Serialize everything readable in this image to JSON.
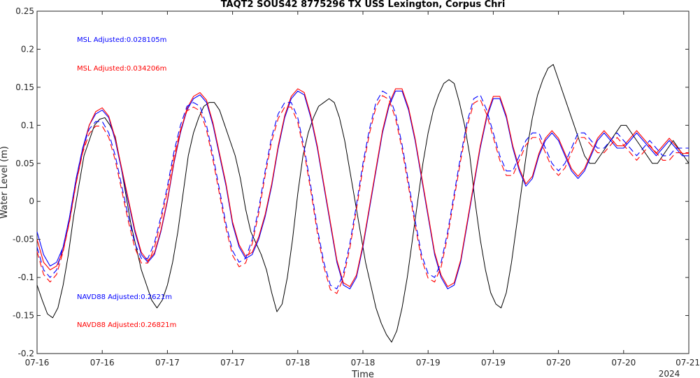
{
  "chart_data": {
    "type": "line",
    "title": "TAQT2 SOUS42 8775296 TX USS Lexington, Corpus Chri",
    "xlabel": "Time",
    "ylabel": "Water Level (m)",
    "xlim": [
      0,
      5
    ],
    "ylim": [
      -0.2,
      0.25
    ],
    "x_unit": "days from 2024-07-16 00:00",
    "x_tick_labels": [
      "07-16",
      "07-16",
      "07-17",
      "07-17",
      "07-18",
      "07-18",
      "07-19",
      "07-19",
      "07-20",
      "07-20",
      "07-21"
    ],
    "x_year_label": "2024",
    "y_ticks": [
      -0.2,
      -0.15,
      -0.1,
      -0.05,
      0,
      0.05,
      0.1,
      0.15,
      0.2,
      0.25
    ],
    "y_tick_labels": [
      "-0.2",
      "-0.15",
      "-0.1",
      "-0.05",
      "0",
      "0.05",
      "0.1",
      "0.15",
      "0.2",
      "0.25"
    ],
    "grid": false,
    "annotations": [
      {
        "text": "MSL Adjusted:0.028105m",
        "color": "#0000ff"
      },
      {
        "text": "MSL Adjusted:0.034206m",
        "color": "#ff0000"
      },
      {
        "text": "NAVD88 Adjusted:0.2621m",
        "color": "#0000ff"
      },
      {
        "text": "NAVD88 Adjusted:0.26821m",
        "color": "#ff0000"
      }
    ],
    "series": [
      {
        "color": "#000000",
        "style": "solid",
        "x": [
          0,
          0.04,
          0.08,
          0.12,
          0.16,
          0.2,
          0.24,
          0.28,
          0.32,
          0.36,
          0.4,
          0.44,
          0.48,
          0.52,
          0.56,
          0.6,
          0.64,
          0.68,
          0.72,
          0.76,
          0.8,
          0.84,
          0.88,
          0.92,
          0.96,
          1,
          1.04,
          1.08,
          1.12,
          1.16,
          1.2,
          1.24,
          1.28,
          1.32,
          1.36,
          1.4,
          1.44,
          1.48,
          1.52,
          1.56,
          1.6,
          1.64,
          1.68,
          1.72,
          1.76,
          1.8,
          1.84,
          1.88,
          1.92,
          1.96,
          2,
          2.04,
          2.08,
          2.12,
          2.16,
          2.2,
          2.24,
          2.28,
          2.32,
          2.36,
          2.4,
          2.44,
          2.48,
          2.52,
          2.56,
          2.6,
          2.64,
          2.68,
          2.72,
          2.76,
          2.8,
          2.84,
          2.88,
          2.92,
          2.96,
          3,
          3.04,
          3.08,
          3.12,
          3.16,
          3.2,
          3.24,
          3.28,
          3.32,
          3.36,
          3.4,
          3.44,
          3.48,
          3.52,
          3.56,
          3.6,
          3.64,
          3.68,
          3.72,
          3.76,
          3.8,
          3.84,
          3.88,
          3.92,
          3.96,
          4,
          4.04,
          4.08,
          4.12,
          4.16,
          4.2,
          4.24,
          4.28,
          4.32,
          4.36,
          4.4,
          4.44,
          4.48,
          4.52,
          4.56,
          4.6,
          4.64,
          4.68,
          4.72,
          4.76,
          4.8,
          4.84,
          4.88,
          4.92,
          4.96,
          5
        ],
        "y": [
          -0.11,
          -0.13,
          -0.148,
          -0.153,
          -0.14,
          -0.11,
          -0.07,
          -0.02,
          0.02,
          0.06,
          0.08,
          0.1,
          0.108,
          0.11,
          0.1,
          0.085,
          0.05,
          0.01,
          -0.03,
          -0.06,
          -0.09,
          -0.11,
          -0.13,
          -0.14,
          -0.13,
          -0.11,
          -0.08,
          -0.04,
          0.01,
          0.06,
          0.09,
          0.11,
          0.125,
          0.13,
          0.13,
          0.12,
          0.1,
          0.08,
          0.06,
          0.03,
          -0.01,
          -0.04,
          -0.055,
          -0.07,
          -0.09,
          -0.12,
          -0.145,
          -0.135,
          -0.1,
          -0.05,
          0.01,
          0.06,
          0.09,
          0.11,
          0.125,
          0.13,
          0.135,
          0.13,
          0.11,
          0.08,
          0.04,
          0.0,
          -0.04,
          -0.08,
          -0.11,
          -0.14,
          -0.16,
          -0.175,
          -0.185,
          -0.17,
          -0.14,
          -0.1,
          -0.05,
          0.0,
          0.05,
          0.09,
          0.12,
          0.14,
          0.155,
          0.16,
          0.155,
          0.13,
          0.1,
          0.06,
          0.0,
          -0.05,
          -0.09,
          -0.12,
          -0.135,
          -0.14,
          -0.12,
          -0.08,
          -0.03,
          0.02,
          0.07,
          0.11,
          0.14,
          0.16,
          0.175,
          0.18,
          0.16,
          0.14,
          0.12,
          0.1,
          0.08,
          0.06,
          0.05,
          0.05,
          0.06,
          0.07,
          0.08,
          0.09,
          0.1,
          0.1,
          0.09,
          0.08,
          0.07,
          0.06,
          0.05,
          0.05,
          0.06,
          0.07,
          0.08,
          0.07,
          0.06,
          0.05
        ]
      },
      {
        "color": "#0000ff",
        "style": "solid",
        "x": [
          0,
          0.05,
          0.1,
          0.15,
          0.2,
          0.25,
          0.3,
          0.35,
          0.4,
          0.45,
          0.5,
          0.55,
          0.6,
          0.65,
          0.7,
          0.75,
          0.8,
          0.85,
          0.9,
          0.95,
          1,
          1.05,
          1.1,
          1.15,
          1.2,
          1.25,
          1.3,
          1.35,
          1.4,
          1.45,
          1.5,
          1.55,
          1.6,
          1.65,
          1.7,
          1.75,
          1.8,
          1.85,
          1.9,
          1.95,
          2,
          2.05,
          2.1,
          2.15,
          2.2,
          2.25,
          2.3,
          2.35,
          2.4,
          2.45,
          2.5,
          2.55,
          2.6,
          2.65,
          2.7,
          2.75,
          2.8,
          2.85,
          2.9,
          2.95,
          3,
          3.05,
          3.1,
          3.15,
          3.2,
          3.25,
          3.3,
          3.35,
          3.4,
          3.45,
          3.5,
          3.55,
          3.6,
          3.65,
          3.7,
          3.75,
          3.8,
          3.85,
          3.9,
          3.95,
          4,
          4.05,
          4.1,
          4.15,
          4.2,
          4.25,
          4.3,
          4.35,
          4.4,
          4.45,
          4.5,
          4.55,
          4.6,
          4.65,
          4.7,
          4.75,
          4.8,
          4.85,
          4.9,
          4.95,
          5
        ],
        "y": [
          -0.04,
          -0.07,
          -0.085,
          -0.08,
          -0.06,
          -0.02,
          0.03,
          0.07,
          0.1,
          0.115,
          0.12,
          0.11,
          0.08,
          0.04,
          0.0,
          -0.04,
          -0.07,
          -0.08,
          -0.07,
          -0.04,
          0.0,
          0.05,
          0.09,
          0.12,
          0.135,
          0.14,
          0.13,
          0.1,
          0.06,
          0.02,
          -0.03,
          -0.06,
          -0.075,
          -0.07,
          -0.05,
          -0.02,
          0.02,
          0.07,
          0.11,
          0.135,
          0.145,
          0.14,
          0.11,
          0.07,
          0.02,
          -0.03,
          -0.08,
          -0.11,
          -0.115,
          -0.1,
          -0.06,
          -0.01,
          0.04,
          0.09,
          0.125,
          0.145,
          0.145,
          0.12,
          0.08,
          0.03,
          -0.02,
          -0.07,
          -0.1,
          -0.115,
          -0.11,
          -0.08,
          -0.03,
          0.02,
          0.07,
          0.11,
          0.135,
          0.135,
          0.11,
          0.07,
          0.04,
          0.02,
          0.03,
          0.06,
          0.08,
          0.09,
          0.08,
          0.06,
          0.04,
          0.03,
          0.04,
          0.06,
          0.08,
          0.09,
          0.08,
          0.07,
          0.07,
          0.08,
          0.09,
          0.08,
          0.07,
          0.06,
          0.07,
          0.08,
          0.07,
          0.06,
          0.06
        ]
      },
      {
        "color": "#ff0000",
        "style": "solid",
        "x": [
          0,
          0.05,
          0.1,
          0.15,
          0.2,
          0.25,
          0.3,
          0.35,
          0.4,
          0.45,
          0.5,
          0.55,
          0.6,
          0.65,
          0.7,
          0.75,
          0.8,
          0.85,
          0.9,
          0.95,
          1,
          1.05,
          1.1,
          1.15,
          1.2,
          1.25,
          1.3,
          1.35,
          1.4,
          1.45,
          1.5,
          1.55,
          1.6,
          1.65,
          1.7,
          1.75,
          1.8,
          1.85,
          1.9,
          1.95,
          2,
          2.05,
          2.1,
          2.15,
          2.2,
          2.25,
          2.3,
          2.35,
          2.4,
          2.45,
          2.5,
          2.55,
          2.6,
          2.65,
          2.7,
          2.75,
          2.8,
          2.85,
          2.9,
          2.95,
          3,
          3.05,
          3.1,
          3.15,
          3.2,
          3.25,
          3.3,
          3.35,
          3.4,
          3.45,
          3.5,
          3.55,
          3.6,
          3.65,
          3.7,
          3.75,
          3.8,
          3.85,
          3.9,
          3.95,
          4,
          4.05,
          4.1,
          4.15,
          4.2,
          4.25,
          4.3,
          4.35,
          4.4,
          4.45,
          4.5,
          4.55,
          4.6,
          4.65,
          4.7,
          4.75,
          4.8,
          4.85,
          4.9,
          4.95,
          5
        ],
        "y": [
          -0.05,
          -0.08,
          -0.09,
          -0.085,
          -0.065,
          -0.025,
          0.025,
          0.065,
          0.1,
          0.118,
          0.123,
          0.112,
          0.083,
          0.043,
          0.003,
          -0.037,
          -0.067,
          -0.078,
          -0.068,
          -0.038,
          0.002,
          0.052,
          0.092,
          0.122,
          0.138,
          0.143,
          0.133,
          0.103,
          0.063,
          0.023,
          -0.027,
          -0.057,
          -0.072,
          -0.067,
          -0.047,
          -0.017,
          0.023,
          0.073,
          0.113,
          0.138,
          0.148,
          0.143,
          0.113,
          0.073,
          0.023,
          -0.027,
          -0.077,
          -0.107,
          -0.112,
          -0.097,
          -0.057,
          -0.007,
          0.043,
          0.093,
          0.128,
          0.148,
          0.148,
          0.123,
          0.083,
          0.033,
          -0.017,
          -0.067,
          -0.097,
          -0.112,
          -0.107,
          -0.077,
          -0.027,
          0.023,
          0.073,
          0.113,
          0.138,
          0.138,
          0.113,
          0.073,
          0.043,
          0.023,
          0.033,
          0.063,
          0.083,
          0.093,
          0.083,
          0.063,
          0.043,
          0.033,
          0.043,
          0.063,
          0.083,
          0.093,
          0.083,
          0.073,
          0.073,
          0.083,
          0.093,
          0.083,
          0.073,
          0.063,
          0.073,
          0.083,
          0.073,
          0.063,
          0.063
        ]
      },
      {
        "color": "#0000ff",
        "style": "dashed",
        "x": [
          0,
          0.05,
          0.1,
          0.15,
          0.2,
          0.25,
          0.3,
          0.35,
          0.4,
          0.45,
          0.5,
          0.55,
          0.6,
          0.65,
          0.7,
          0.75,
          0.8,
          0.85,
          0.9,
          0.95,
          1,
          1.05,
          1.1,
          1.15,
          1.2,
          1.25,
          1.3,
          1.35,
          1.4,
          1.45,
          1.5,
          1.55,
          1.6,
          1.65,
          1.7,
          1.75,
          1.8,
          1.85,
          1.9,
          1.95,
          2,
          2.05,
          2.1,
          2.15,
          2.2,
          2.25,
          2.3,
          2.35,
          2.4,
          2.45,
          2.5,
          2.55,
          2.6,
          2.65,
          2.7,
          2.75,
          2.8,
          2.85,
          2.9,
          2.95,
          3,
          3.05,
          3.1,
          3.15,
          3.2,
          3.25,
          3.3,
          3.35,
          3.4,
          3.45,
          3.5,
          3.55,
          3.6,
          3.65,
          3.7,
          3.75,
          3.8,
          3.85,
          3.9,
          3.95,
          4,
          4.05,
          4.1,
          4.15,
          4.2,
          4.25,
          4.3,
          4.35,
          4.4,
          4.45,
          4.5,
          4.55,
          4.6,
          4.65,
          4.7,
          4.75,
          4.8,
          4.85,
          4.9,
          4.95,
          5
        ],
        "y": [
          -0.06,
          -0.09,
          -0.1,
          -0.09,
          -0.06,
          -0.02,
          0.03,
          0.07,
          0.095,
          0.105,
          0.105,
          0.09,
          0.06,
          0.02,
          -0.02,
          -0.055,
          -0.075,
          -0.075,
          -0.055,
          -0.02,
          0.02,
          0.065,
          0.1,
          0.125,
          0.13,
          0.125,
          0.1,
          0.06,
          0.015,
          -0.03,
          -0.065,
          -0.08,
          -0.075,
          -0.05,
          -0.01,
          0.04,
          0.085,
          0.115,
          0.13,
          0.13,
          0.11,
          0.07,
          0.02,
          -0.035,
          -0.08,
          -0.11,
          -0.115,
          -0.095,
          -0.055,
          -0.005,
          0.05,
          0.095,
          0.13,
          0.145,
          0.14,
          0.115,
          0.075,
          0.025,
          -0.025,
          -0.07,
          -0.095,
          -0.1,
          -0.08,
          -0.04,
          0.01,
          0.06,
          0.105,
          0.135,
          0.14,
          0.12,
          0.09,
          0.06,
          0.04,
          0.04,
          0.06,
          0.08,
          0.09,
          0.09,
          0.07,
          0.05,
          0.04,
          0.05,
          0.07,
          0.09,
          0.09,
          0.08,
          0.07,
          0.07,
          0.08,
          0.09,
          0.08,
          0.07,
          0.06,
          0.07,
          0.08,
          0.07,
          0.06,
          0.06,
          0.07,
          0.07,
          0.07
        ]
      },
      {
        "color": "#ff0000",
        "style": "dashed",
        "x": [
          0,
          0.05,
          0.1,
          0.15,
          0.2,
          0.25,
          0.3,
          0.35,
          0.4,
          0.45,
          0.5,
          0.55,
          0.6,
          0.65,
          0.7,
          0.75,
          0.8,
          0.85,
          0.9,
          0.95,
          1,
          1.05,
          1.1,
          1.15,
          1.2,
          1.25,
          1.3,
          1.35,
          1.4,
          1.45,
          1.5,
          1.55,
          1.6,
          1.65,
          1.7,
          1.75,
          1.8,
          1.85,
          1.9,
          1.95,
          2,
          2.05,
          2.1,
          2.15,
          2.2,
          2.25,
          2.3,
          2.35,
          2.4,
          2.45,
          2.5,
          2.55,
          2.6,
          2.65,
          2.7,
          2.75,
          2.8,
          2.85,
          2.9,
          2.95,
          3,
          3.05,
          3.1,
          3.15,
          3.2,
          3.25,
          3.3,
          3.35,
          3.4,
          3.45,
          3.5,
          3.55,
          3.6,
          3.65,
          3.7,
          3.75,
          3.8,
          3.85,
          3.9,
          3.95,
          4,
          4.05,
          4.1,
          4.15,
          4.2,
          4.25,
          4.3,
          4.35,
          4.4,
          4.45,
          4.5,
          4.55,
          4.6,
          4.65,
          4.7,
          4.75,
          4.8,
          4.85,
          4.9,
          4.95,
          5
        ],
        "y": [
          -0.066,
          -0.096,
          -0.106,
          -0.096,
          -0.066,
          -0.026,
          0.024,
          0.064,
          0.089,
          0.099,
          0.099,
          0.084,
          0.054,
          0.014,
          -0.026,
          -0.061,
          -0.081,
          -0.081,
          -0.061,
          -0.026,
          0.014,
          0.059,
          0.094,
          0.119,
          0.124,
          0.119,
          0.094,
          0.054,
          0.009,
          -0.036,
          -0.071,
          -0.086,
          -0.081,
          -0.056,
          -0.016,
          0.034,
          0.079,
          0.109,
          0.124,
          0.124,
          0.104,
          0.064,
          0.014,
          -0.041,
          -0.086,
          -0.116,
          -0.121,
          -0.101,
          -0.061,
          -0.011,
          0.044,
          0.089,
          0.124,
          0.139,
          0.134,
          0.109,
          0.069,
          0.019,
          -0.031,
          -0.076,
          -0.101,
          -0.106,
          -0.086,
          -0.046,
          0.004,
          0.054,
          0.099,
          0.129,
          0.134,
          0.114,
          0.084,
          0.054,
          0.034,
          0.034,
          0.054,
          0.074,
          0.084,
          0.084,
          0.064,
          0.044,
          0.034,
          0.044,
          0.064,
          0.084,
          0.084,
          0.074,
          0.064,
          0.064,
          0.074,
          0.084,
          0.074,
          0.064,
          0.054,
          0.064,
          0.074,
          0.064,
          0.054,
          0.054,
          0.064,
          0.064,
          0.064
        ]
      }
    ]
  }
}
